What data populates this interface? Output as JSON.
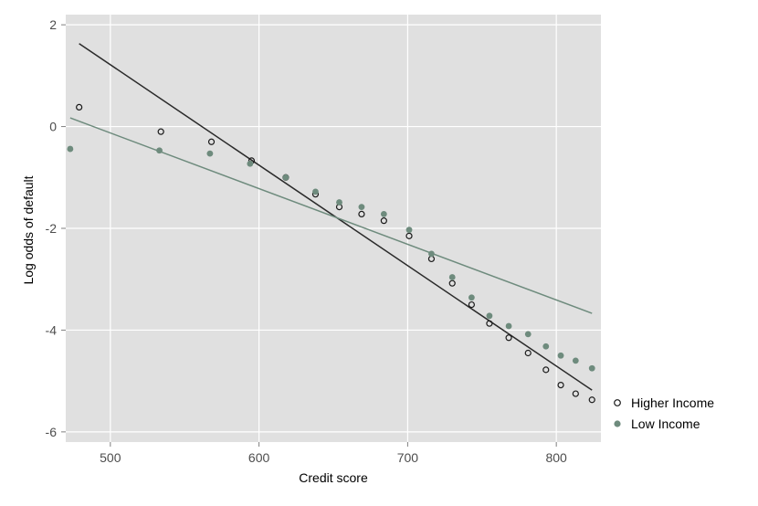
{
  "chart_data": {
    "type": "scatter",
    "title": "",
    "xlabel": "Credit score",
    "ylabel": "Log odds of default",
    "xlim": [
      470,
      830
    ],
    "ylim": [
      -6.2,
      2.2
    ],
    "xticks": [
      500,
      600,
      700,
      800
    ],
    "yticks": [
      -6,
      -4,
      -2,
      0,
      2
    ],
    "xtick_labels": [
      "500",
      "600",
      "700",
      "800"
    ],
    "ytick_labels": [
      "-6",
      "-4",
      "-2",
      "0",
      "2"
    ],
    "grid": true,
    "panel_background": "#e0e0e0",
    "legend_position": "right",
    "series": [
      {
        "name": "Higher Income",
        "marker": "hollow-circle",
        "color": "#1a1a1a",
        "points": [
          [
            479,
            0.38
          ],
          [
            534,
            -0.1
          ],
          [
            568,
            -0.3
          ],
          [
            595,
            -0.67
          ],
          [
            618,
            -1.0
          ],
          [
            638,
            -1.33
          ],
          [
            654,
            -1.58
          ],
          [
            669,
            -1.72
          ],
          [
            684,
            -1.85
          ],
          [
            701,
            -2.15
          ],
          [
            716,
            -2.6
          ],
          [
            730,
            -3.08
          ],
          [
            743,
            -3.5
          ],
          [
            755,
            -3.87
          ],
          [
            768,
            -4.15
          ],
          [
            781,
            -4.45
          ],
          [
            793,
            -4.78
          ],
          [
            803,
            -5.08
          ],
          [
            813,
            -5.25
          ],
          [
            824,
            -5.37
          ]
        ],
        "fit_line": [
          [
            479,
            1.63
          ],
          [
            824,
            -5.18
          ]
        ]
      },
      {
        "name": "Low Income",
        "marker": "filled-circle",
        "color": "#6e8b7d",
        "points": [
          [
            473,
            -0.44
          ],
          [
            533,
            -0.47
          ],
          [
            567,
            -0.53
          ],
          [
            594,
            -0.73
          ],
          [
            618,
            -1.0
          ],
          [
            638,
            -1.28
          ],
          [
            654,
            -1.49
          ],
          [
            669,
            -1.58
          ],
          [
            684,
            -1.72
          ],
          [
            701,
            -2.03
          ],
          [
            716,
            -2.5
          ],
          [
            730,
            -2.96
          ],
          [
            743,
            -3.36
          ],
          [
            755,
            -3.72
          ],
          [
            768,
            -3.92
          ],
          [
            781,
            -4.08
          ],
          [
            793,
            -4.32
          ],
          [
            803,
            -4.5
          ],
          [
            813,
            -4.6
          ],
          [
            824,
            -4.75
          ]
        ],
        "fit_line": [
          [
            473,
            0.17
          ],
          [
            824,
            -3.67
          ]
        ]
      }
    ]
  }
}
